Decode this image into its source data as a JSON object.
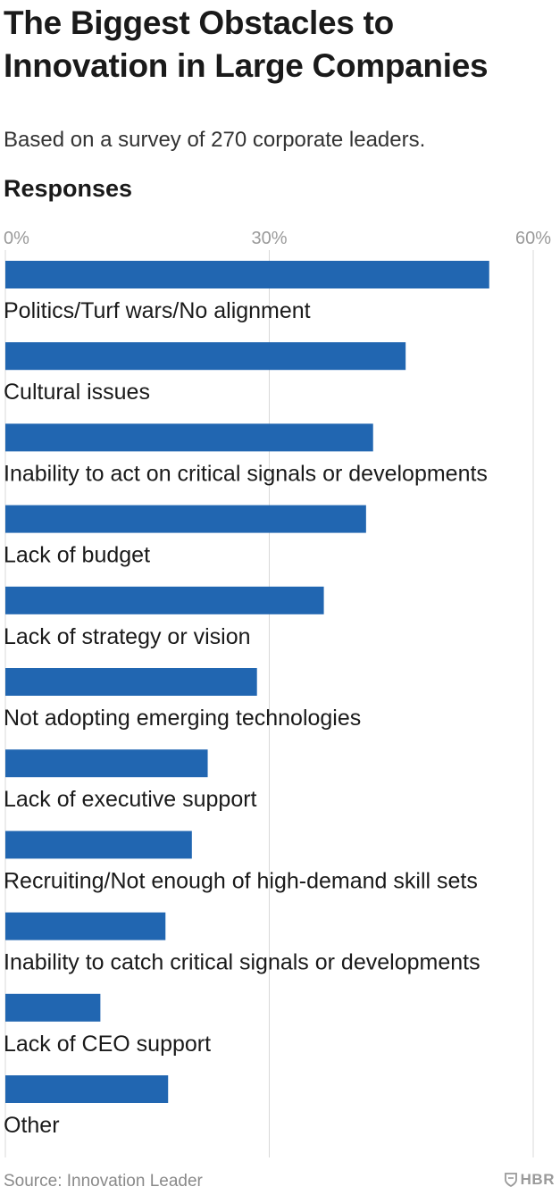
{
  "title": "The Biggest Obstacles to Innovation in Large Companies",
  "subtitle": "Based on a survey of 270 corporate leaders.",
  "responses_label": "Responses",
  "source": "Source: Innovation Leader",
  "brand": "HBR",
  "brand_icon": "shield-icon",
  "colors": {
    "bar": "#2166b1",
    "gridline": "#d9d9d9",
    "tick_text": "#9a9a9a"
  },
  "chart_data": {
    "type": "bar",
    "orientation": "horizontal",
    "title": "The Biggest Obstacles to Innovation in Large Companies",
    "subtitle": "Based on a survey of 270 corporate leaders.",
    "xlabel": "Responses",
    "xlim": [
      0,
      60
    ],
    "xticks": [
      0,
      30,
      60
    ],
    "xtick_labels": [
      "0%",
      "30%",
      "60%"
    ],
    "grid": true,
    "categories": [
      "Politics/Turf wars/No alignment",
      "Cultural issues",
      "Inability to act on critical signals or developments",
      "Lack of budget",
      "Lack of strategy or vision",
      "Not adopting emerging technologies",
      "Lack of executive support",
      "Recruiting/Not enough of high-demand skill sets",
      "Inability to catch critical signals or developments",
      "Lack of CEO support",
      "Other"
    ],
    "values": [
      55,
      45.5,
      41.8,
      41,
      36.2,
      28.6,
      23,
      21.2,
      18.2,
      10.8,
      18.5
    ]
  }
}
